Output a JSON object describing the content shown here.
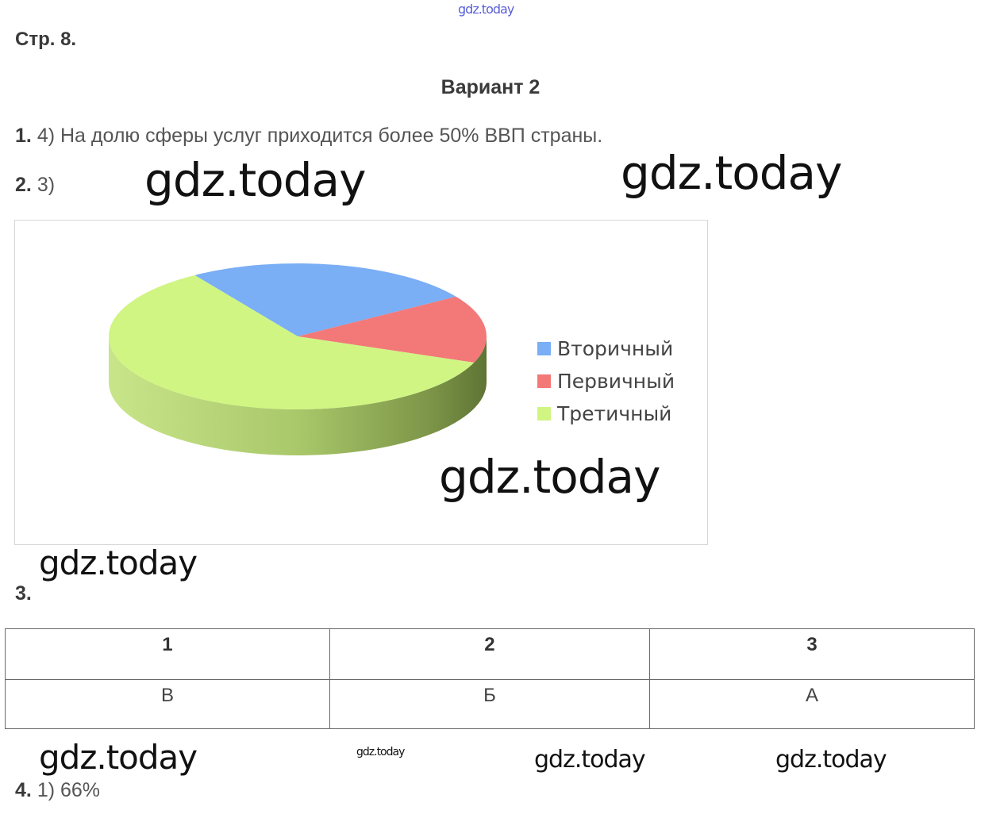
{
  "watermark": "gdz.today",
  "page_ref": "Стр. 8.",
  "variant_title": "Вариант 2",
  "q1": {
    "num": "1.",
    "text": "4) На долю сферы услуг приходится более 50% ВВП страны."
  },
  "q2": {
    "num": "2.",
    "text": "3)"
  },
  "q3": {
    "num": "3."
  },
  "q4": {
    "num": "4.",
    "text": "1) 66%"
  },
  "chart_data": {
    "type": "pie",
    "style": "3d",
    "legend_position": "right",
    "series": [
      {
        "name": "Вторичный",
        "value": 25,
        "color": "#7aaef5"
      },
      {
        "name": "Первичный",
        "value": 15,
        "color": "#f37878"
      },
      {
        "name": "Третичный",
        "value": 60,
        "color": "#d0f583"
      }
    ]
  },
  "table": {
    "headers": [
      "1",
      "2",
      "3"
    ],
    "values": [
      "В",
      "Б",
      "А"
    ]
  }
}
